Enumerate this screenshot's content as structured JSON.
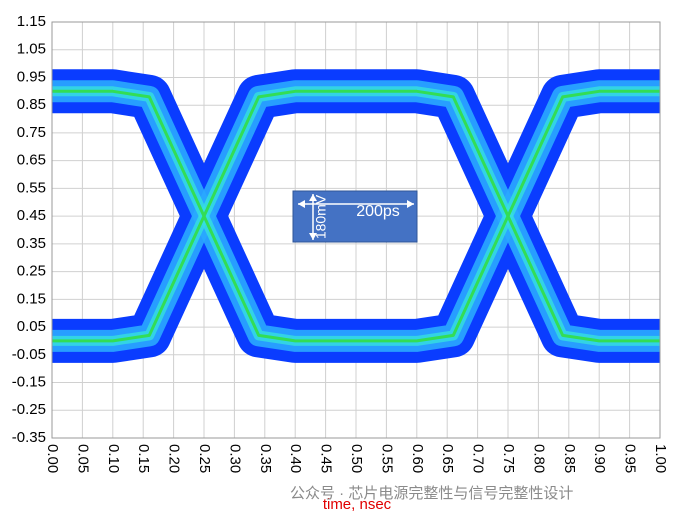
{
  "chart_data": {
    "type": "eye",
    "xlabel": "time, nsec",
    "xlim": [
      0,
      1
    ],
    "ylim": [
      -0.35,
      1.15
    ],
    "xticks": [
      {
        "value": 0,
        "label": "0.00"
      },
      0.05,
      {
        "value": 0.1,
        "label": "0.10"
      },
      0.15,
      {
        "value": 0.2,
        "label": "0.20"
      },
      0.25,
      {
        "value": 0.3,
        "label": "0.30"
      },
      0.35,
      {
        "value": 0.4,
        "label": "0.40"
      },
      0.45,
      {
        "value": 0.5,
        "label": "0.50"
      },
      0.55,
      {
        "value": 0.6,
        "label": "0.60"
      },
      0.65,
      {
        "value": 0.7,
        "label": "0.70"
      },
      0.75,
      {
        "value": 0.8,
        "label": "0.80"
      },
      0.85,
      {
        "value": 0.9,
        "label": "0.90"
      },
      0.95,
      {
        "value": 1,
        "label": "1.00"
      }
    ],
    "yticks": [
      -0.35,
      -0.25,
      -0.15,
      -0.05,
      0.05,
      0.15,
      0.25,
      0.35,
      0.45,
      0.55,
      0.65,
      0.75,
      0.85,
      0.95,
      1.05,
      1.15
    ],
    "grid": true,
    "x": [
      0,
      0.1,
      0.16,
      0.25,
      0.34,
      0.4,
      0.5,
      0.6,
      0.66,
      0.75,
      0.84,
      0.9,
      1.0
    ],
    "series": [
      {
        "color": "#0a3cff",
        "values": [
          0.9,
          0.9,
          0.88,
          0.45,
          0.02,
          0.0,
          0.0,
          0.0,
          0.02,
          0.45,
          0.88,
          0.9,
          0.9
        ]
      },
      {
        "color": "#0a3cff",
        "values": [
          0.0,
          0.0,
          0.02,
          0.45,
          0.88,
          0.9,
          0.9,
          0.9,
          0.88,
          0.45,
          0.02,
          0.0,
          0.0
        ]
      }
    ],
    "annotations": [
      "200ps",
      "180mV"
    ],
    "watermark": "公众号 · 芯片电源完整性与信号完整性设计"
  }
}
